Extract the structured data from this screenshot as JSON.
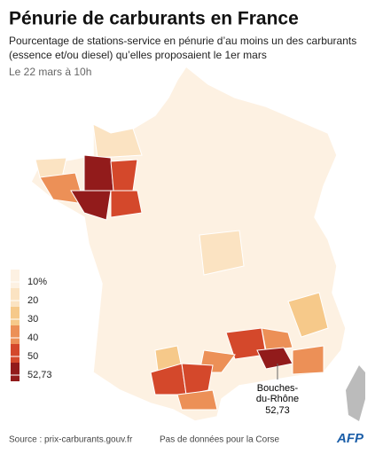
{
  "header": {
    "title": "Pénurie de carburants en France",
    "subtitle_lines": [
      "Pourcentage de stations-service en pénurie d’au moins un des carburants",
      "(essence et/ou diesel) qu’elles proposaient le 1er mars"
    ],
    "date": "Le 22 mars à 10h"
  },
  "legend": {
    "ticks": [
      {
        "value": 10,
        "label": "10%"
      },
      20,
      30,
      40,
      50,
      {
        "value": 52.73,
        "label": "52,73"
      }
    ],
    "colors": [
      "#fdf1e2",
      "#fbe3c2",
      "#f6c98a",
      "#ec9057",
      "#d4482b",
      "#921b1b"
    ]
  },
  "annotation": {
    "lines": [
      "Bouches-",
      "du-Rhône"
    ],
    "value": 52.73,
    "value_label": "52,73",
    "color": "#921b1b"
  },
  "footer": {
    "source": "Source : prix-carburants.gouv.fr",
    "note": "Pas de données pour la Corse",
    "logo": "AFP"
  }
}
